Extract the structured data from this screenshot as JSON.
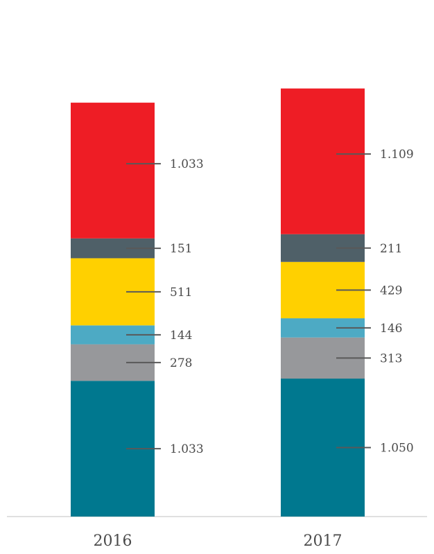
{
  "chart_data": {
    "type": "bar",
    "stacked": true,
    "categories": [
      "2016",
      "2017"
    ],
    "series": [
      {
        "color": "#00788f",
        "values": [
          1033,
          1050
        ],
        "labels": [
          "1.033",
          "1.050"
        ]
      },
      {
        "color": "#97989b",
        "values": [
          278,
          313
        ],
        "labels": [
          "278",
          "313"
        ]
      },
      {
        "color": "#4daac4",
        "values": [
          144,
          146
        ],
        "labels": [
          "144",
          "146"
        ]
      },
      {
        "color": "#ffd000",
        "values": [
          511,
          429
        ],
        "labels": [
          "511",
          "429"
        ]
      },
      {
        "color": "#4f6068",
        "values": [
          151,
          211
        ],
        "labels": [
          "151",
          "211"
        ]
      },
      {
        "color": "#ee1d25",
        "values": [
          1033,
          1109
        ],
        "labels": [
          "1.033",
          "1.109"
        ]
      }
    ],
    "grid": false,
    "legend": "none"
  }
}
